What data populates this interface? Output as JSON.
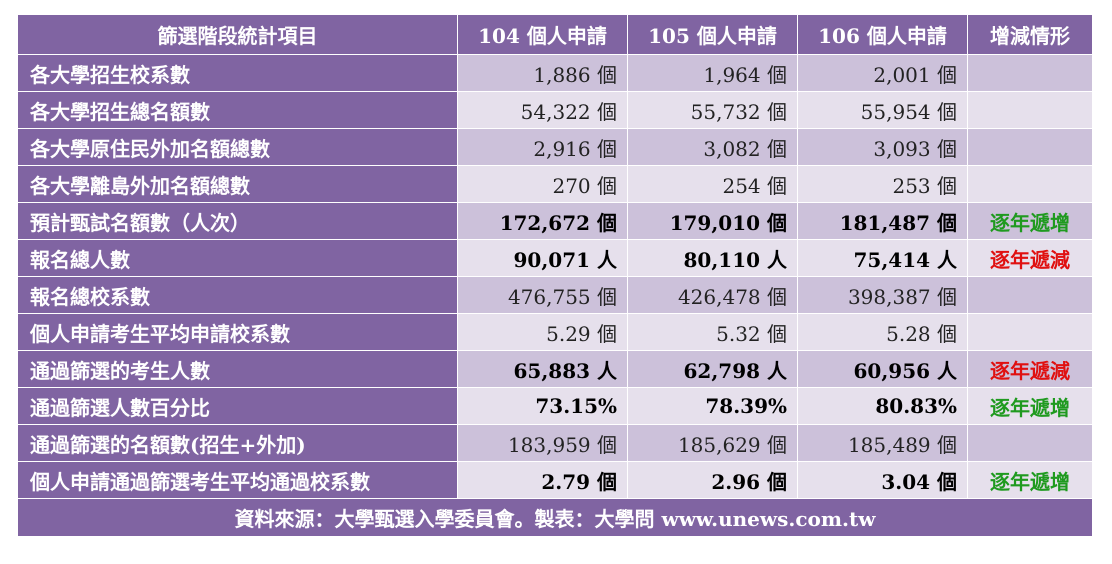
{
  "header": [
    "篩選階段統計項目",
    "104 個人申請",
    "105 個人申請",
    "106 個人申請",
    "增減情形"
  ],
  "rows": [
    {
      "label": "各大學招生校系數",
      "v104": "1,886 個",
      "v105": "1,964 個",
      "v106": "2,001 個",
      "trend": "",
      "trend_type": "",
      "bold": false
    },
    {
      "label": "各大學招生總名額數",
      "v104": "54,322 個",
      "v105": "55,732 個",
      "v106": "55,954 個",
      "trend": "",
      "trend_type": "",
      "bold": false
    },
    {
      "label": "各大學原住民外加名額總數",
      "v104": "2,916 個",
      "v105": "3,082 個",
      "v106": "3,093 個",
      "trend": "",
      "trend_type": "",
      "bold": false
    },
    {
      "label": "各大學離島外加名額總數",
      "v104": "270 個",
      "v105": "254 個",
      "v106": "253 個",
      "trend": "",
      "trend_type": "",
      "bold": false
    },
    {
      "label": "預計甄試名額數（人次）",
      "v104": "172,672 個",
      "v105": "179,010 個",
      "v106": "181,487 個",
      "trend": "逐年遞增",
      "trend_type": "up",
      "bold": true
    },
    {
      "label": "報名總人數",
      "v104": "90,071 人",
      "v105": "80,110 人",
      "v106": "75,414 人",
      "trend": "逐年遞減",
      "trend_type": "down",
      "bold": true
    },
    {
      "label": "報名總校系數",
      "v104": "476,755 個",
      "v105": "426,478 個",
      "v106": "398,387 個",
      "trend": "",
      "trend_type": "",
      "bold": false
    },
    {
      "label": "個人申請考生平均申請校系數",
      "v104": "5.29 個",
      "v105": "5.32 個",
      "v106": "5.28 個",
      "trend": "",
      "trend_type": "",
      "bold": false
    },
    {
      "label": "通過篩選的考生人數",
      "v104": "65,883 人",
      "v105": "62,798 人",
      "v106": "60,956 人",
      "trend": "逐年遞減",
      "trend_type": "down",
      "bold": true
    },
    {
      "label": "通過篩選人數百分比",
      "v104": "73.15%",
      "v105": "78.39%",
      "v106": "80.83%",
      "trend": "逐年遞增",
      "trend_type": "up",
      "bold": true
    },
    {
      "label": "通過篩選的名額數(招生+外加)",
      "v104": "183,959 個",
      "v105": "185,629 個",
      "v106": "185,489 個",
      "trend": "",
      "trend_type": "",
      "bold": false
    },
    {
      "label": "個人申請通過篩選考生平均通過校系數",
      "v104": "2.79 個",
      "v105": "2.96 個",
      "v106": "3.04 個",
      "trend": "逐年遞增",
      "trend_type": "up",
      "bold": true
    }
  ],
  "footer": "資料來源：大學甄選入學委員會。製表：大學問 www.unews.com.tw",
  "colors": {
    "header_bg": "#8064a2",
    "row_odd": "#ccc1da",
    "row_even": "#e6e0ec",
    "increase": "#1f9a1f",
    "decrease": "#e01010"
  }
}
